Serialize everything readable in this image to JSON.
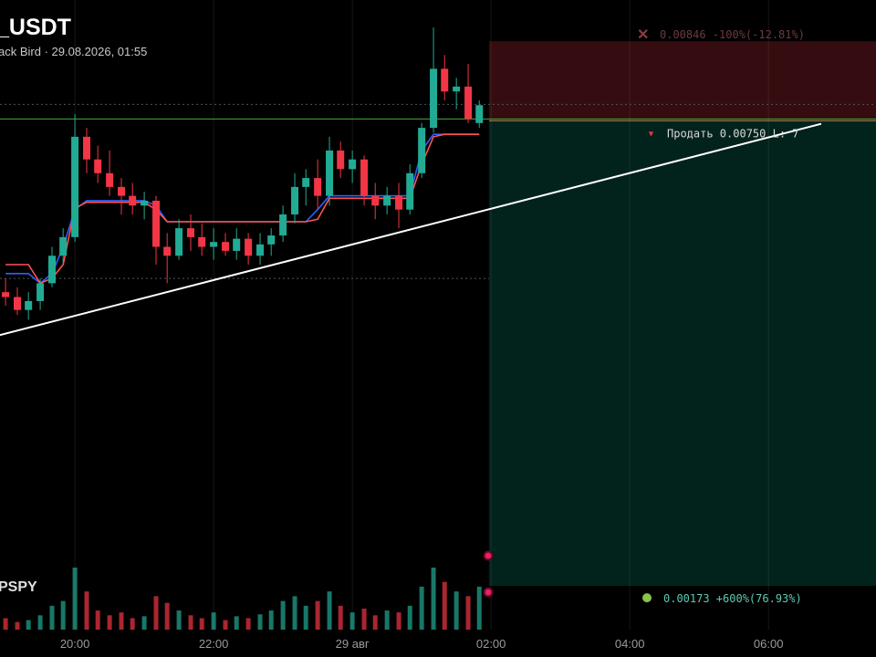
{
  "chart_data": {
    "type": "candlestick",
    "title": "_USDT",
    "subtitle": "ack Bird · 29.08.2026, 01:55",
    "indicator_label": "PSPY",
    "x": [
      19,
      19.17,
      19.33,
      19.5,
      19.67,
      19.83,
      20,
      20.17,
      20.33,
      20.5,
      20.67,
      20.83,
      21,
      21.17,
      21.33,
      21.5,
      21.67,
      21.83,
      22,
      22.17,
      22.33,
      22.5,
      22.67,
      22.83,
      23,
      23.17,
      23.33,
      23.5,
      23.67,
      23.83,
      24,
      24.17,
      24.33,
      24.5,
      24.67,
      24.83,
      25,
      25.17,
      25.33,
      25.5,
      25.67,
      25.83
    ],
    "open": [
      0.00536,
      0.0053,
      0.00514,
      0.00525,
      0.00547,
      0.00581,
      0.00604,
      0.00728,
      0.007,
      0.00683,
      0.00666,
      0.00655,
      0.00643,
      0.00649,
      0.00592,
      0.00581,
      0.00615,
      0.00604,
      0.00592,
      0.00598,
      0.00587,
      0.00602,
      0.00581,
      0.00595,
      0.00606,
      0.00632,
      0.00666,
      0.00677,
      0.00655,
      0.00711,
      0.00688,
      0.007,
      0.00655,
      0.00643,
      0.00655,
      0.00638,
      0.00683,
      0.00739,
      0.00812,
      0.00784,
      0.0079,
      0.00745
    ],
    "high": [
      0.00553,
      0.00542,
      0.00536,
      0.00553,
      0.00592,
      0.00615,
      0.00756,
      0.00739,
      0.00717,
      0.00711,
      0.00677,
      0.00671,
      0.0066,
      0.00655,
      0.00609,
      0.00626,
      0.00632,
      0.00621,
      0.00615,
      0.00609,
      0.00615,
      0.00609,
      0.00609,
      0.00615,
      0.00643,
      0.00683,
      0.00688,
      0.007,
      0.00728,
      0.00722,
      0.00711,
      0.00705,
      0.00671,
      0.00666,
      0.00671,
      0.00694,
      0.00745,
      0.00863,
      0.00829,
      0.00801,
      0.00818,
      0.00773
    ],
    "low": [
      0.00519,
      0.00508,
      0.00502,
      0.00514,
      0.00542,
      0.0057,
      0.00598,
      0.00683,
      0.00671,
      0.00655,
      0.00632,
      0.00632,
      0.00626,
      0.0057,
      0.00547,
      0.00576,
      0.00587,
      0.00581,
      0.00576,
      0.00581,
      0.00576,
      0.0057,
      0.0057,
      0.00581,
      0.00598,
      0.00621,
      0.00643,
      0.00638,
      0.00643,
      0.00677,
      0.00671,
      0.00643,
      0.00626,
      0.00632,
      0.00615,
      0.00632,
      0.00677,
      0.00733,
      0.00773,
      0.00762,
      0.00745,
      0.00739
    ],
    "close": [
      0.0053,
      0.00514,
      0.00525,
      0.00547,
      0.00581,
      0.00604,
      0.00728,
      0.007,
      0.00683,
      0.00666,
      0.00655,
      0.00643,
      0.00649,
      0.00592,
      0.00581,
      0.00615,
      0.00604,
      0.00592,
      0.00598,
      0.00587,
      0.00602,
      0.00581,
      0.00595,
      0.00606,
      0.00632,
      0.00666,
      0.00677,
      0.00655,
      0.00711,
      0.00688,
      0.007,
      0.00655,
      0.00643,
      0.00655,
      0.00638,
      0.00683,
      0.00739,
      0.00812,
      0.00784,
      0.0079,
      0.0075,
      0.00767
    ],
    "volume": [
      12,
      8,
      10,
      15,
      25,
      30,
      65,
      40,
      20,
      15,
      18,
      12,
      14,
      35,
      28,
      20,
      15,
      12,
      18,
      10,
      14,
      12,
      16,
      20,
      30,
      35,
      25,
      30,
      40,
      25,
      18,
      22,
      15,
      20,
      18,
      25,
      45,
      65,
      50,
      40,
      35,
      45
    ],
    "up_color": "#22ab94",
    "down_color": "#f23645",
    "bands": [
      {
        "color": "#2962ff",
        "values": [
          0.00559,
          0.00559,
          0.00559,
          0.00547,
          0.00559,
          0.00592,
          0.00638,
          0.00649,
          0.00649,
          0.00649,
          0.00649,
          0.00649,
          0.00649,
          0.00643,
          0.00623,
          0.00623,
          0.00623,
          0.00623,
          0.00623,
          0.00623,
          0.00623,
          0.00623,
          0.00623,
          0.00623,
          0.00623,
          0.00623,
          0.00623,
          0.00638,
          0.00655,
          0.00655,
          0.00655,
          0.00655,
          0.00655,
          0.00655,
          0.00655,
          0.00655,
          0.00711,
          0.00731,
          0.00731,
          0.00731,
          0.00731,
          0.00731
        ]
      },
      {
        "color": "#ff5252",
        "values": [
          0.0057,
          0.0057,
          0.0057,
          0.00547,
          0.00553,
          0.0057,
          0.0064,
          0.00647,
          0.00647,
          0.00647,
          0.00647,
          0.00647,
          0.00647,
          0.00638,
          0.00623,
          0.00623,
          0.00623,
          0.00623,
          0.00623,
          0.00623,
          0.00623,
          0.00623,
          0.00623,
          0.00623,
          0.00623,
          0.00623,
          0.00623,
          0.00626,
          0.00652,
          0.00652,
          0.00652,
          0.00652,
          0.00652,
          0.00652,
          0.00652,
          0.00652,
          0.00694,
          0.00728,
          0.00731,
          0.00731,
          0.00731,
          0.00731
        ]
      }
    ],
    "price_lines": [
      0.00768,
      0.00553
    ],
    "trendline": {
      "x": [
        18.92,
        30.76
      ],
      "y": [
        0.00483,
        0.00744
      ],
      "color": "#ffffff"
    },
    "position": {
      "start": 25.97,
      "entry": 0.0075,
      "stop": 0.00846,
      "target": 0.00173,
      "stop_label": "0.00846 -100%(-12.81%)",
      "entry_label": "Продать 0.00750 L: 7",
      "target_label": "0.00173 +600%(76.93%)"
    },
    "xlim": [
      18.92,
      31.55
    ],
    "ylim": [
      0.00119,
      0.00897
    ],
    "xticks": [
      {
        "value": 20,
        "label": "20:00"
      },
      {
        "value": 22,
        "label": "22:00"
      },
      {
        "value": 24,
        "label": "29 авг"
      },
      {
        "value": 26,
        "label": "02:00"
      },
      {
        "value": 28,
        "label": "04:00"
      },
      {
        "value": 30,
        "label": "06:00"
      }
    ]
  }
}
